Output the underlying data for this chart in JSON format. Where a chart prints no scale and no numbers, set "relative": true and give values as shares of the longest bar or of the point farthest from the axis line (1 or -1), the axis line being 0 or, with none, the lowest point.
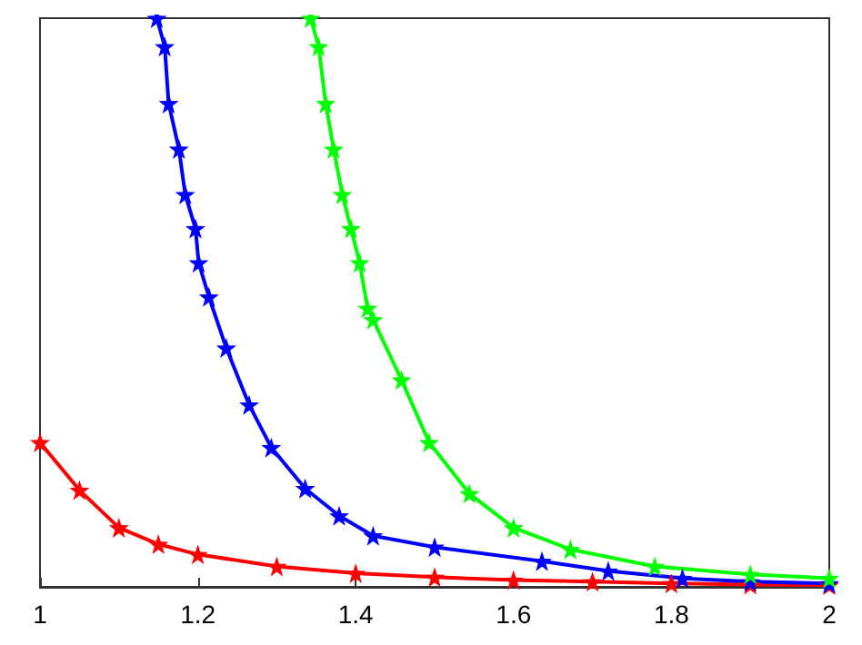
{
  "chart_data": {
    "type": "line",
    "relative": true,
    "xlim": [
      1,
      2
    ],
    "xticks": [
      1,
      1.2,
      1.4,
      1.6,
      1.8,
      2
    ],
    "tick_labels": "x",
    "grid": false,
    "marker": "star",
    "line_style": "solid",
    "series": [
      {
        "color": "#ff0000",
        "x": [
          1,
          1.05,
          1.1,
          1.15,
          1.2,
          1.3,
          1.4,
          1.5,
          1.6,
          1.7,
          1.8,
          1.9,
          2
        ],
        "values": [
          0.254,
          0.17,
          0.104,
          0.075,
          0.057,
          0.036,
          0.024,
          0.017,
          0.012,
          0.009,
          0.006,
          0.004,
          0.003
        ]
      },
      {
        "color": "#0000ff",
        "x": [
          1.148,
          1.158,
          1.163,
          1.176,
          1.184,
          1.197,
          1.201,
          1.214,
          1.236,
          1.265,
          1.293,
          1.336,
          1.379,
          1.422,
          1.5,
          1.636,
          1.72,
          1.814,
          1.9,
          2
        ],
        "values": [
          1,
          0.95,
          0.85,
          0.77,
          0.69,
          0.63,
          0.57,
          0.51,
          0.42,
          0.32,
          0.245,
          0.173,
          0.125,
          0.09,
          0.07,
          0.045,
          0.028,
          0.015,
          0.009,
          0.006
        ]
      },
      {
        "color": "#00ff00",
        "x": [
          1.343,
          1.353,
          1.362,
          1.372,
          1.383,
          1.394,
          1.405,
          1.415,
          1.422,
          1.458,
          1.493,
          1.544,
          1.6,
          1.672,
          1.779,
          1.9,
          2
        ],
        "values": [
          1,
          0.95,
          0.85,
          0.77,
          0.69,
          0.63,
          0.57,
          0.49,
          0.47,
          0.364,
          0.254,
          0.164,
          0.104,
          0.066,
          0.036,
          0.022,
          0.015
        ]
      }
    ]
  }
}
